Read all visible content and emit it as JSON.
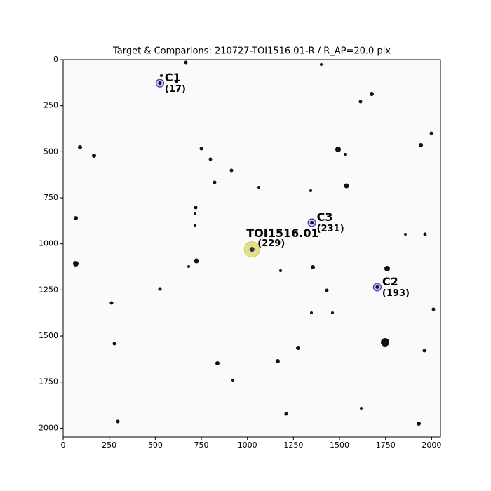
{
  "chart_data": {
    "type": "image",
    "title": "Target & Comparions: 210727-TOI1516.01-R / R_AP=20.0 pix",
    "xlim": [
      0,
      2048
    ],
    "ylim": [
      2048,
      0
    ],
    "xticks": [
      0,
      250,
      500,
      750,
      1000,
      1250,
      1500,
      1750,
      2000
    ],
    "yticks": [
      0,
      250,
      500,
      750,
      1000,
      1250,
      1500,
      1750,
      2000
    ],
    "annotations": [
      {
        "label": "C1",
        "sublabel": "(17)",
        "x": 525,
        "y": 128,
        "color": "#3333cc"
      },
      {
        "label": "C3",
        "sublabel": "(231)",
        "x": 1350,
        "y": 885,
        "color": "#3333cc"
      },
      {
        "label": "TOI1516.01",
        "sublabel": "(229)",
        "x": 1025,
        "y": 1030,
        "color": "#e01010"
      },
      {
        "label": "C2",
        "sublabel": "(193)",
        "x": 1705,
        "y": 1235,
        "color": "#3333cc"
      }
    ]
  }
}
